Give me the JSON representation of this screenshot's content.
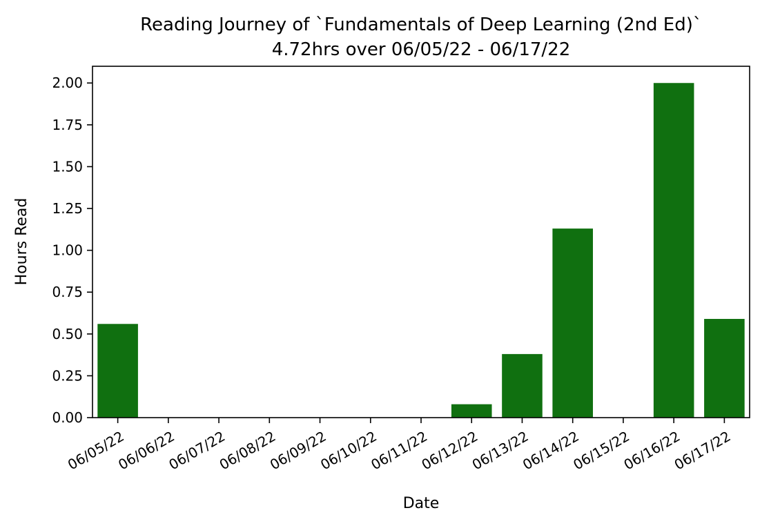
{
  "chart_data": {
    "type": "bar",
    "title": "Reading Journey of `Fundamentals of Deep Learning (2nd Ed)`",
    "subtitle": "4.72hrs over 06/05/22 - 06/17/22",
    "xlabel": "Date",
    "ylabel": "Hours Read",
    "categories": [
      "06/05/22",
      "06/06/22",
      "06/07/22",
      "06/08/22",
      "06/09/22",
      "06/10/22",
      "06/11/22",
      "06/12/22",
      "06/13/22",
      "06/14/22",
      "06/15/22",
      "06/16/22",
      "06/17/22"
    ],
    "values": [
      0.56,
      0,
      0,
      0,
      0,
      0,
      0,
      0.08,
      0.38,
      1.13,
      0,
      2.0,
      0.59
    ],
    "ylim": [
      0,
      2.1
    ],
    "yticks": [
      "0.00",
      "0.25",
      "0.50",
      "0.75",
      "1.00",
      "1.25",
      "1.50",
      "1.75",
      "2.00"
    ],
    "grid": false,
    "bar_color": "#107010"
  }
}
